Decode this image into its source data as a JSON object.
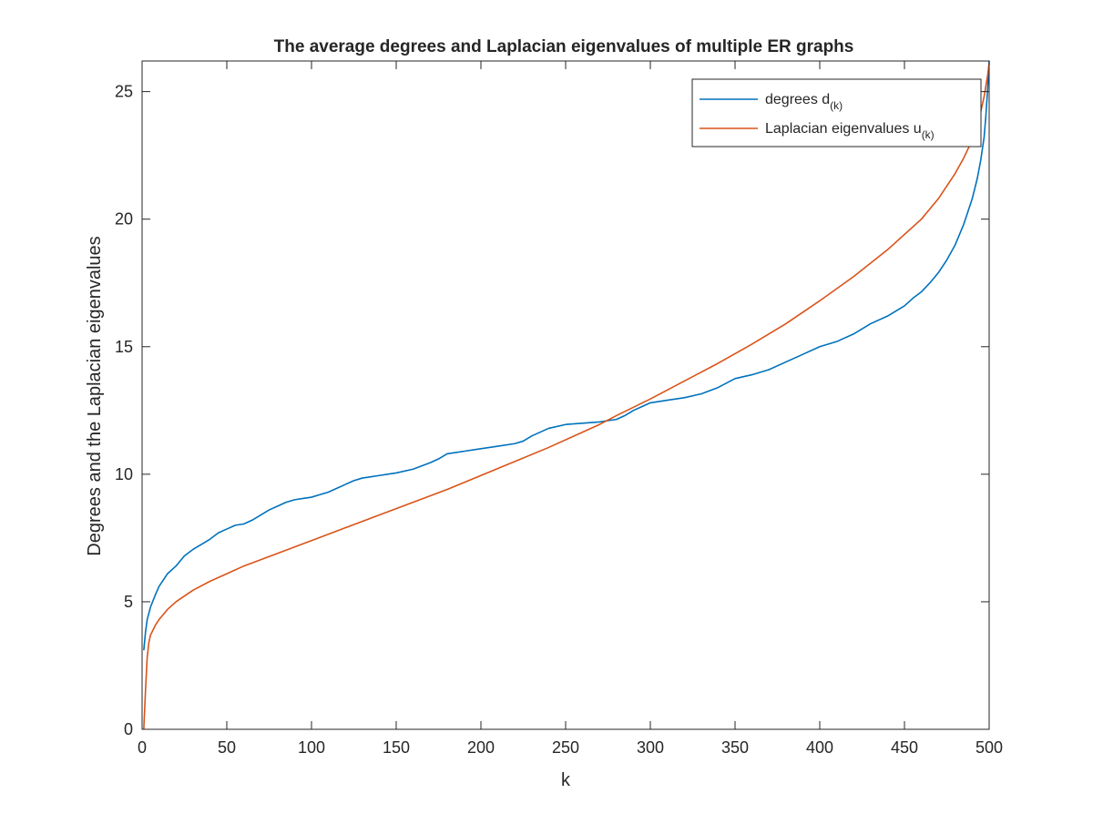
{
  "chart_data": {
    "type": "line",
    "title": "The average degrees and Laplacian eigenvalues of multiple ER graphs",
    "xlabel": "k",
    "ylabel": "Degrees and the Laplacian eigenvalues",
    "xlim": [
      0,
      500
    ],
    "ylim": [
      0,
      26.2
    ],
    "xticks": [
      0,
      50,
      100,
      150,
      200,
      250,
      300,
      350,
      400,
      450,
      500
    ],
    "yticks": [
      0,
      5,
      10,
      15,
      20,
      25
    ],
    "grid": false,
    "box": true,
    "legend_position": "top-right",
    "colors": {
      "degrees": "#0072BD",
      "laplacian": "#D95319",
      "axes": "#262626"
    },
    "series": [
      {
        "key": "degrees",
        "name": "degrees d",
        "name_subscript": "(k)",
        "color": "#0072BD",
        "x": [
          1,
          2,
          3,
          5,
          8,
          10,
          15,
          20,
          25,
          30,
          35,
          40,
          45,
          50,
          55,
          60,
          65,
          70,
          75,
          80,
          85,
          90,
          95,
          100,
          105,
          110,
          115,
          120,
          125,
          130,
          135,
          140,
          145,
          150,
          160,
          170,
          175,
          180,
          190,
          200,
          210,
          220,
          225,
          230,
          240,
          250,
          260,
          270,
          275,
          280,
          285,
          290,
          295,
          300,
          310,
          320,
          330,
          340,
          350,
          360,
          370,
          380,
          390,
          400,
          410,
          420,
          430,
          440,
          450,
          455,
          460,
          465,
          470,
          475,
          480,
          485,
          490,
          493,
          495,
          497,
          498,
          499,
          500
        ],
        "y": [
          3.1,
          3.8,
          4.3,
          4.8,
          5.3,
          5.6,
          6.1,
          6.4,
          6.8,
          7.05,
          7.25,
          7.45,
          7.7,
          7.85,
          8.0,
          8.05,
          8.2,
          8.4,
          8.6,
          8.75,
          8.9,
          9.0,
          9.05,
          9.1,
          9.2,
          9.3,
          9.45,
          9.6,
          9.75,
          9.85,
          9.9,
          9.95,
          10.0,
          10.05,
          10.2,
          10.45,
          10.6,
          10.8,
          10.9,
          11.0,
          11.1,
          11.2,
          11.3,
          11.5,
          11.8,
          11.95,
          12.0,
          12.05,
          12.1,
          12.15,
          12.3,
          12.5,
          12.65,
          12.8,
          12.9,
          13.0,
          13.15,
          13.4,
          13.75,
          13.9,
          14.1,
          14.4,
          14.7,
          15.0,
          15.2,
          15.5,
          15.9,
          16.2,
          16.6,
          16.9,
          17.15,
          17.5,
          17.9,
          18.4,
          19.0,
          19.8,
          20.8,
          21.6,
          22.3,
          23.2,
          24.0,
          25.0,
          26.2
        ]
      },
      {
        "key": "laplacian",
        "name": "Laplacian eigenvalues u",
        "name_subscript": "(k)",
        "color": "#D95319",
        "x": [
          1,
          2,
          3,
          4,
          5,
          8,
          10,
          15,
          20,
          30,
          40,
          50,
          60,
          70,
          80,
          90,
          100,
          120,
          140,
          160,
          180,
          200,
          220,
          240,
          260,
          270,
          280,
          300,
          320,
          340,
          360,
          380,
          400,
          420,
          440,
          460,
          470,
          480,
          485,
          490,
          493,
          495,
          497,
          499,
          500
        ],
        "y": [
          0.0,
          1.5,
          2.8,
          3.4,
          3.7,
          4.1,
          4.3,
          4.7,
          5.0,
          5.45,
          5.8,
          6.1,
          6.4,
          6.65,
          6.9,
          7.15,
          7.4,
          7.9,
          8.4,
          8.9,
          9.4,
          9.95,
          10.5,
          11.05,
          11.65,
          11.95,
          12.3,
          12.95,
          13.65,
          14.35,
          15.1,
          15.9,
          16.8,
          17.75,
          18.8,
          20.0,
          20.8,
          21.8,
          22.4,
          23.1,
          23.7,
          24.2,
          24.8,
          25.6,
          26.1
        ]
      }
    ]
  }
}
